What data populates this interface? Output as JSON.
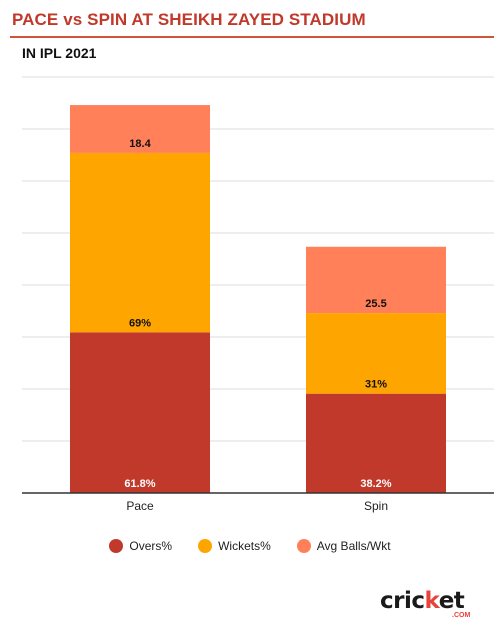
{
  "title": "PACE vs SPIN AT SHEIKH ZAYED STADIUM",
  "subtitle": "IN IPL 2021",
  "chart_data": {
    "type": "bar",
    "stacked": true,
    "categories": [
      "Pace",
      "Spin"
    ],
    "series": [
      {
        "name": "Overs%",
        "values": [
          61.8,
          38.2
        ],
        "labels": [
          "61.8%",
          "38.2%"
        ],
        "color": "#c0392b"
      },
      {
        "name": "Wickets%",
        "values": [
          69,
          31
        ],
        "labels": [
          "69%",
          "31%"
        ],
        "color": "#ffa500"
      },
      {
        "name": "Avg Balls/Wkt",
        "values": [
          18.4,
          25.5
        ],
        "labels": [
          "18.4",
          "25.5"
        ],
        "color": "#ff8059"
      }
    ],
    "ylim": [
      0,
      160
    ],
    "grid": true,
    "legend": "bottom-center"
  },
  "logo": {
    "text_a": "cric",
    "text_dot": "k",
    "text_b": "et",
    "sub": ".COM"
  }
}
